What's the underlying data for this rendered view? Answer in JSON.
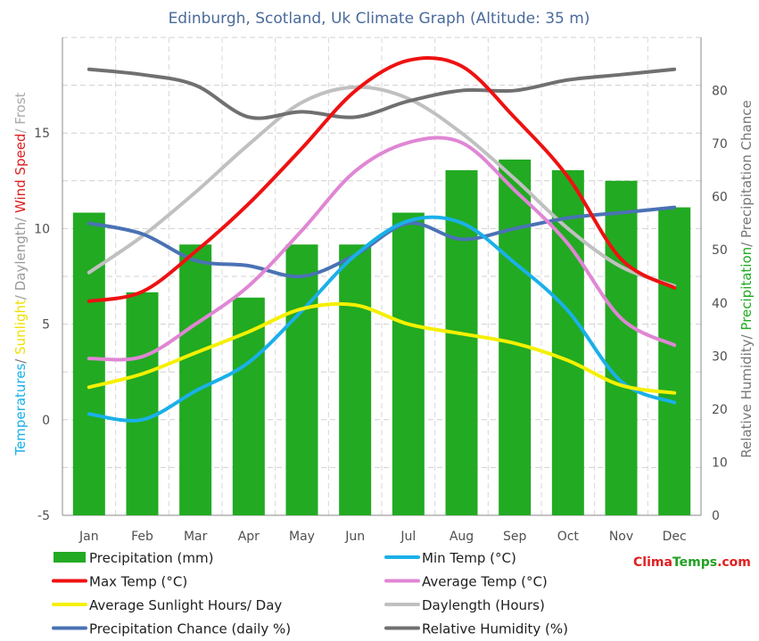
{
  "chart_data": {
    "type": "bar",
    "title": "Edinburgh, Scotland, Uk Climate Graph (Altitude: 35 m)",
    "categories": [
      "Jan",
      "Feb",
      "Mar",
      "Apr",
      "May",
      "Jun",
      "Jul",
      "Aug",
      "Sep",
      "Oct",
      "Nov",
      "Dec"
    ],
    "ylabel_left_parts": [
      {
        "text": "Temperatures",
        "color": "#1ab0e8"
      },
      {
        "text": "/ ",
        "color": "#777777"
      },
      {
        "text": "Sunlight",
        "color": "#f0e000"
      },
      {
        "text": "/ Daylength/ ",
        "color": "#999999"
      },
      {
        "text": "Wind Speed",
        "color": "#dd2020"
      },
      {
        "text": "/ Frost",
        "color": "#aaaaaa"
      }
    ],
    "ylabel_right_parts": [
      {
        "text": "Relative Humidity/ ",
        "color": "#777777"
      },
      {
        "text": "Precipitation",
        "color": "#22aa22"
      },
      {
        "text": "/ Precipitation Chance",
        "color": "#777777"
      }
    ],
    "ylim_left": [
      -5,
      20
    ],
    "yticks_left": [
      -5,
      0,
      5,
      10,
      15
    ],
    "ylim_right": [
      0,
      90
    ],
    "yticks_right": [
      0,
      10,
      20,
      30,
      40,
      50,
      60,
      70,
      80
    ],
    "grid": true,
    "bars": {
      "name": "Precipitation (mm)",
      "color": "#22aa22",
      "values": [
        57,
        42,
        51,
        41,
        51,
        51,
        57,
        65,
        67,
        65,
        63,
        58
      ]
    },
    "series": [
      {
        "name": "Min Temp (°C)",
        "color": "#1ab0e8",
        "axis": "left",
        "values": [
          0.3,
          0.0,
          1.5,
          3.0,
          5.7,
          8.6,
          10.4,
          10.3,
          8.2,
          5.7,
          2.0,
          0.9
        ]
      },
      {
        "name": "Max Temp (°C)",
        "color": "#ee1111",
        "axis": "left",
        "values": [
          6.2,
          6.7,
          8.8,
          11.3,
          14.2,
          17.2,
          18.8,
          18.5,
          15.8,
          12.7,
          8.4,
          6.9
        ]
      },
      {
        "name": "Average Temp (°C)",
        "color": "#e086d4",
        "axis": "left",
        "values": [
          3.2,
          3.3,
          5.0,
          7.0,
          9.9,
          13.0,
          14.5,
          14.5,
          12.0,
          9.2,
          5.3,
          3.9
        ]
      },
      {
        "name": "Average Sunlight Hours/ Day",
        "color": "#f5f000",
        "axis": "left",
        "values": [
          1.7,
          2.4,
          3.5,
          4.6,
          5.8,
          6.0,
          5.0,
          4.5,
          4.0,
          3.1,
          1.8,
          1.4
        ]
      },
      {
        "name": "Daylength (Hours)",
        "color": "#c0c0c0",
        "axis": "left",
        "values": [
          7.7,
          9.6,
          11.9,
          14.4,
          16.6,
          17.4,
          16.8,
          15.0,
          12.6,
          10.0,
          8.0,
          7.0
        ]
      },
      {
        "name": "Precipitation Chance (daily %)",
        "color": "#4a72b4",
        "axis": "right",
        "values": [
          55,
          53,
          48,
          47,
          45,
          49,
          55,
          52,
          54,
          56,
          57,
          58
        ]
      },
      {
        "name": "Relative Humidity (%)",
        "color": "#707070",
        "axis": "right",
        "values": [
          84,
          83,
          81,
          75,
          76,
          75,
          78,
          80,
          80,
          82,
          83,
          84
        ]
      }
    ],
    "legend": {
      "placement": "bottom",
      "items": [
        {
          "label": "Precipitation (mm)",
          "color": "#22aa22",
          "kind": "bar"
        },
        {
          "label": "Min Temp (°C)",
          "color": "#1ab0e8",
          "kind": "line"
        },
        {
          "label": "Max Temp (°C)",
          "color": "#ee1111",
          "kind": "line"
        },
        {
          "label": "Average Temp (°C)",
          "color": "#e086d4",
          "kind": "line"
        },
        {
          "label": "Average Sunlight Hours/ Day",
          "color": "#f5f000",
          "kind": "line"
        },
        {
          "label": "Daylength (Hours)",
          "color": "#c0c0c0",
          "kind": "line"
        },
        {
          "label": "Precipitation Chance (daily %)",
          "color": "#4a72b4",
          "kind": "line"
        },
        {
          "label": "Relative Humidity (%)",
          "color": "#707070",
          "kind": "line"
        }
      ]
    },
    "brand_parts": [
      {
        "text": "Clima",
        "color": "#e02020"
      },
      {
        "text": "Temps",
        "color": "#22a022"
      },
      {
        "text": ".com",
        "color": "#e02020"
      }
    ]
  }
}
